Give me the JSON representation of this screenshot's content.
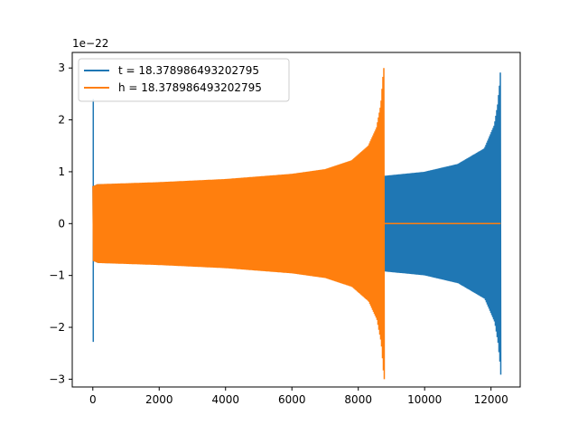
{
  "chart_data": {
    "type": "line",
    "title": "",
    "xlabel": "",
    "ylabel": "",
    "y_scale_label": "1e−22",
    "xlim": [
      -620,
      12880
    ],
    "ylim": [
      -3.15,
      3.3
    ],
    "x_ticks": [
      0,
      2000,
      4000,
      6000,
      8000,
      10000,
      12000
    ],
    "x_tick_labels": [
      "0",
      "2000",
      "4000",
      "6000",
      "8000",
      "10000",
      "12000"
    ],
    "y_ticks": [
      -3,
      -2,
      -1,
      0,
      1,
      2,
      3
    ],
    "y_tick_labels": [
      "−3",
      "−2",
      "−1",
      "0",
      "1",
      "2",
      "3"
    ],
    "grid": false,
    "legend_position": "upper-left",
    "series": [
      {
        "name": "t = 18.378986493202795",
        "color": "#1f77b4",
        "x_start": 0,
        "x_end": 12290,
        "envelope_x": [
          0,
          150,
          2000,
          4000,
          6000,
          8000,
          8750,
          10000,
          11000,
          11800,
          12100,
          12200,
          12260,
          12290
        ],
        "envelope_y": [
          0.72,
          0.76,
          0.78,
          0.8,
          0.84,
          0.88,
          0.92,
          1.0,
          1.15,
          1.45,
          1.9,
          2.3,
          2.7,
          3.0
        ],
        "spikes": [
          {
            "x": 0,
            "max": 2.4,
            "min": -2.28
          }
        ]
      },
      {
        "name": "h = 18.378986493202795",
        "color": "#ff7f0e",
        "x_start": 0,
        "x_end": 8760,
        "envelope_x": [
          0,
          150,
          2000,
          4000,
          6000,
          7000,
          7800,
          8300,
          8550,
          8680,
          8740,
          8760
        ],
        "envelope_y": [
          0.72,
          0.76,
          0.8,
          0.86,
          0.96,
          1.05,
          1.22,
          1.5,
          1.85,
          2.3,
          2.8,
          3.0
        ],
        "flat_after_end": {
          "x_end": 12290,
          "y": 0
        }
      }
    ]
  }
}
